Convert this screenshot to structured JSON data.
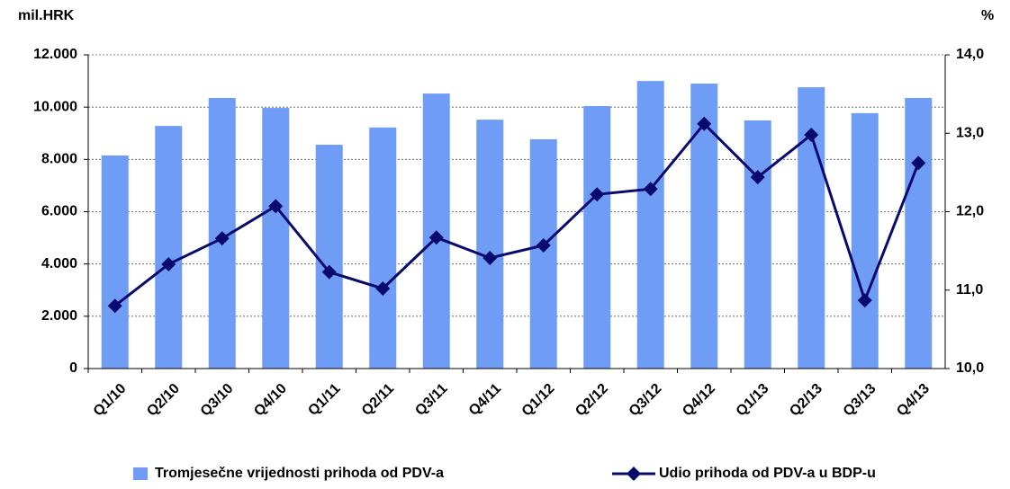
{
  "chart_data": {
    "type": "bar_line",
    "ylabel": "mil.HRK",
    "y2label": "%",
    "categories": [
      "Q1/10",
      "Q2/10",
      "Q3/10",
      "Q4/10",
      "Q1/11",
      "Q2/11",
      "Q3/11",
      "Q4/11",
      "Q1/12",
      "Q2/12",
      "Q3/12",
      "Q4/12",
      "Q1/13",
      "Q2/13",
      "Q3/13",
      "Q4/13"
    ],
    "series": [
      {
        "name": "Tromjesečne vrijednosti prihoda od PDV-a",
        "type": "bar",
        "color": "#6f9cf5",
        "values": [
          8150,
          9280,
          10350,
          9970,
          8560,
          9220,
          10520,
          9520,
          8770,
          10040,
          11000,
          10900,
          9490,
          10760,
          9770,
          10350
        ]
      },
      {
        "name": "Udio prihoda od PDV-a u BDP-u",
        "type": "line",
        "axis": "y2",
        "color": "#0a0a6e",
        "values": [
          10.8,
          11.33,
          11.66,
          12.07,
          11.23,
          11.02,
          11.67,
          11.41,
          11.57,
          12.22,
          12.29,
          13.12,
          12.44,
          12.98,
          10.87,
          12.62
        ]
      }
    ],
    "ylim": [
      0,
      12000
    ],
    "yticks": [
      0,
      {
        "value": 2000,
        "label": "2.000"
      },
      {
        "value": 4000,
        "label": "4.000"
      },
      {
        "value": 6000,
        "label": "6.000"
      },
      {
        "value": 8000,
        "label": "8.000"
      },
      {
        "value": 10000,
        "label": "10.000"
      },
      {
        "value": 12000,
        "label": "12.000"
      }
    ],
    "y2lim": [
      10,
      14
    ],
    "y2ticks": [
      {
        "value": 10,
        "label": "10,0"
      },
      {
        "value": 11,
        "label": "11,0"
      },
      {
        "value": 12,
        "label": "12,0"
      },
      {
        "value": 13,
        "label": "13,0"
      },
      {
        "value": 14,
        "label": "14,0"
      }
    ],
    "grid": true,
    "legend": "bottom"
  }
}
